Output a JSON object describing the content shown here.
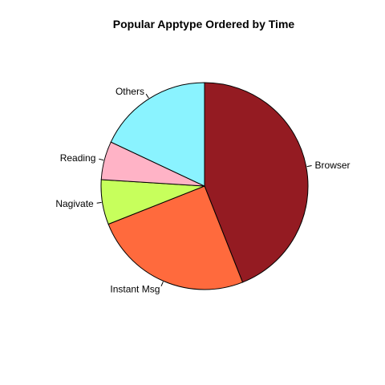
{
  "chart_data": {
    "type": "pie",
    "title": "Popular Apptype Ordered by Time",
    "direction": "clockwise",
    "start": "12 o'clock",
    "slices": [
      {
        "label": "Browser",
        "value": 44,
        "color": "#941B22"
      },
      {
        "label": "Instant Msg",
        "value": 25,
        "color": "#FF6A3D"
      },
      {
        "label": "Nagivate",
        "value": 7,
        "color": "#C7FF5C"
      },
      {
        "label": "Reading",
        "value": 6,
        "color": "#FFB3C6"
      },
      {
        "label": "Others",
        "value": 18,
        "color": "#8AF3FF"
      }
    ]
  }
}
